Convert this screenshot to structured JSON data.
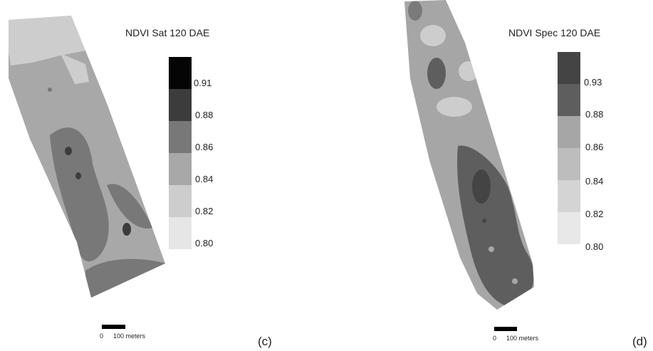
{
  "figure": {
    "panels": [
      {
        "id": "c",
        "title": "NDVI Sat 120 DAE",
        "legend": {
          "classes": [
            {
              "color": "#050505"
            },
            {
              "color": "#3c3c3c"
            },
            {
              "color": "#787878"
            },
            {
              "color": "#a8a8a8"
            },
            {
              "color": "#cdcdcd"
            },
            {
              "color": "#e6e6e6"
            }
          ],
          "ticks": [
            "0.91",
            "0.88",
            "0.86",
            "0.84",
            "0.82",
            "0.80"
          ]
        },
        "scale": {
          "zero": "0",
          "distance": "100 meters"
        },
        "panel_label": "(c)"
      },
      {
        "id": "d",
        "title": "NDVI Spec 120 DAE",
        "legend": {
          "classes": [
            {
              "color": "#444444"
            },
            {
              "color": "#5e5e5e"
            },
            {
              "color": "#a6a6a6"
            },
            {
              "color": "#bdbdbd"
            },
            {
              "color": "#d4d4d4"
            },
            {
              "color": "#e8e8e8"
            }
          ],
          "ticks": [
            "0.93",
            "0.88",
            "0.86",
            "0.84",
            "0.82",
            "0.80"
          ]
        },
        "scale": {
          "zero": "0",
          "distance": "100 meters"
        },
        "panel_label": "(d)"
      }
    ]
  }
}
